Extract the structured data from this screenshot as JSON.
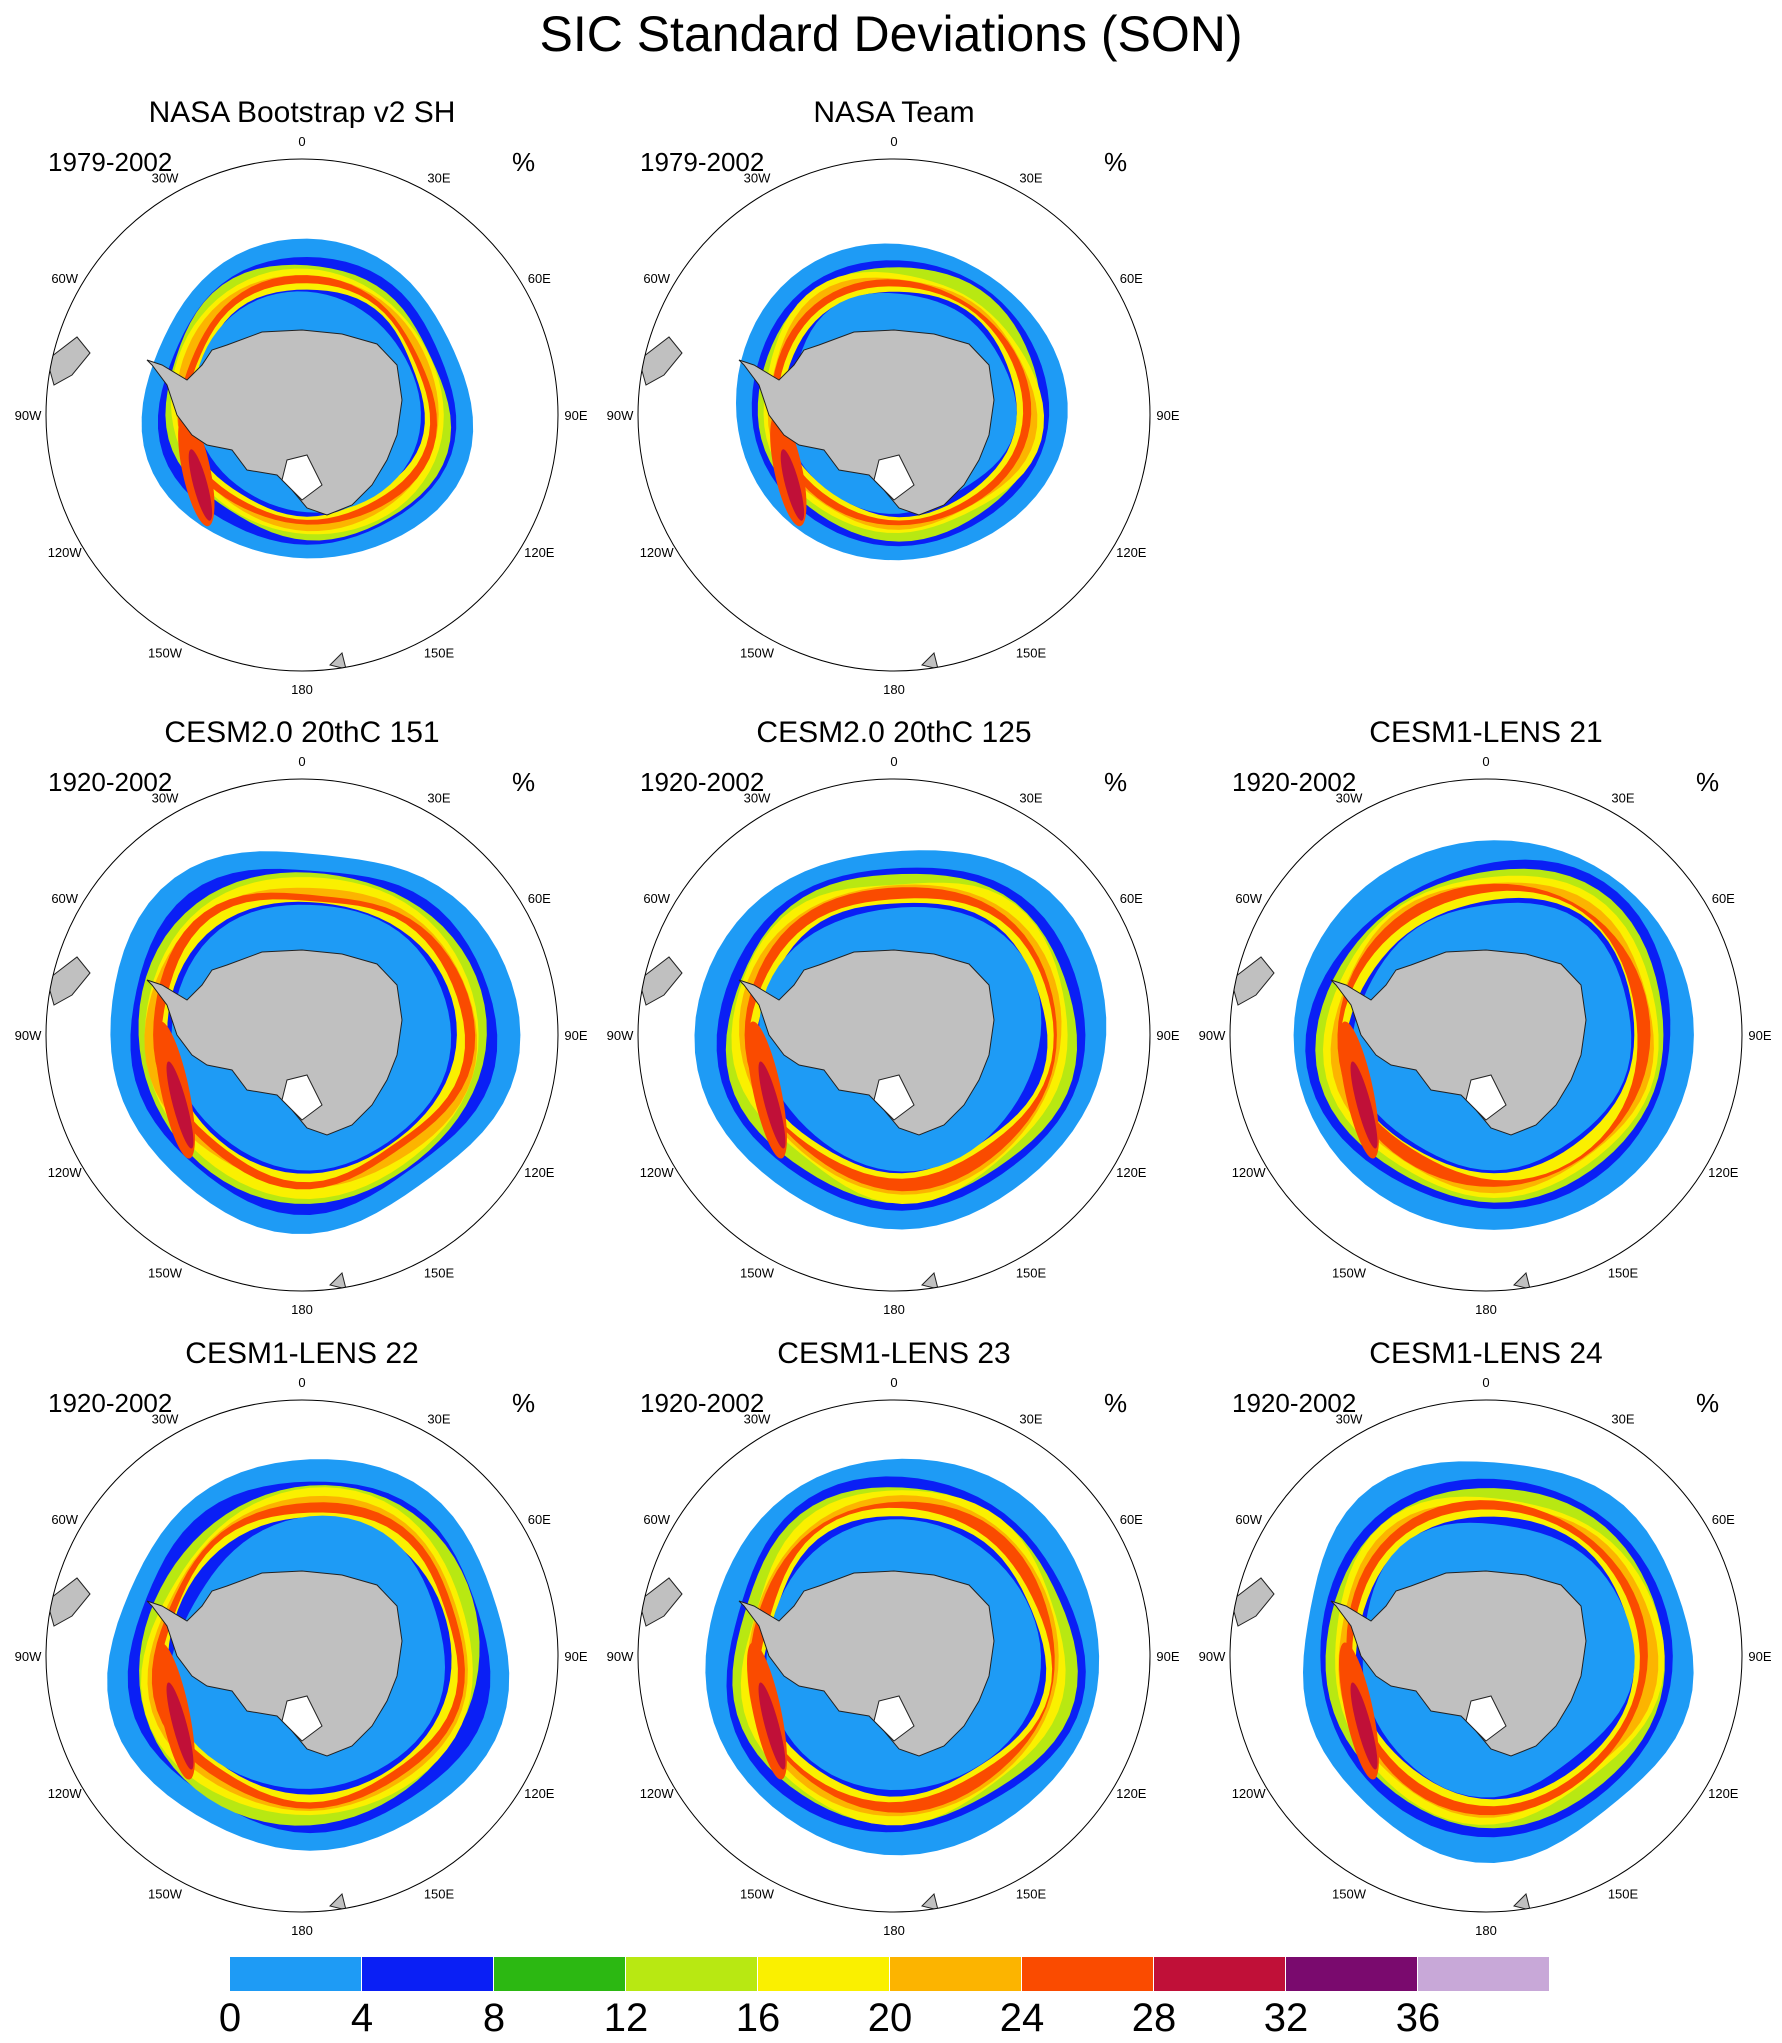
{
  "title": "SIC Standard Deviations (SON)",
  "units": "%",
  "longitude_labels": [
    "0",
    "30E",
    "60E",
    "90E",
    "120E",
    "150E",
    "180",
    "150W",
    "120W",
    "90W",
    "60W",
    "30W"
  ],
  "panels": [
    {
      "title": "NASA Bootstrap v2 SH",
      "period": "1979-2002",
      "style": "obs"
    },
    {
      "title": "NASA Team",
      "period": "1979-2002",
      "style": "obs"
    },
    {
      "title": "CESM2.0 20thC 151",
      "period": "1920-2002",
      "style": "model"
    },
    {
      "title": "CESM2.0 20thC 125",
      "period": "1920-2002",
      "style": "model"
    },
    {
      "title": "CESM1-LENS 21",
      "period": "1920-2002",
      "style": "model"
    },
    {
      "title": "CESM1-LENS 22",
      "period": "1920-2002",
      "style": "model"
    },
    {
      "title": "CESM1-LENS 23",
      "period": "1920-2002",
      "style": "model"
    },
    {
      "title": "CESM1-LENS 24",
      "period": "1920-2002",
      "style": "model"
    }
  ],
  "colorbar": {
    "levels": [
      "0",
      "4",
      "8",
      "12",
      "16",
      "20",
      "24",
      "28",
      "32",
      "36"
    ],
    "colors": [
      "#1e9bf5",
      "#0a1ff5",
      "#2cb812",
      "#b8e812",
      "#faf000",
      "#fcb400",
      "#fa4b00",
      "#c01038",
      "#7a0a6e",
      "#c8a8d8"
    ]
  },
  "colors": {
    "land": "#c0c0c0",
    "outline": "#222222"
  }
}
